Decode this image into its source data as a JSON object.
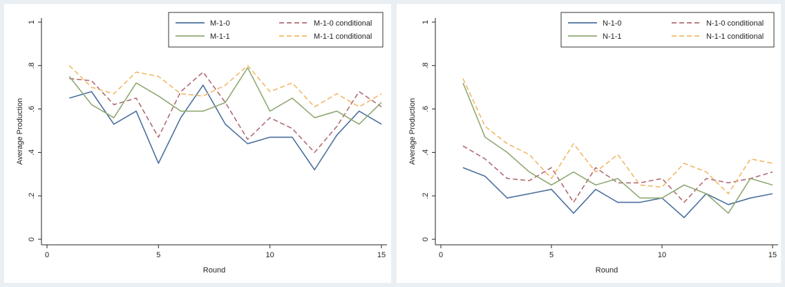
{
  "chart_data": [
    {
      "type": "line",
      "xlabel": "Round",
      "ylabel": "Average Production",
      "xlim": [
        0,
        15
      ],
      "ylim": [
        0,
        1
      ],
      "xticks": [
        {
          "v": 0,
          "label": "0"
        },
        {
          "v": 5,
          "label": "5"
        },
        {
          "v": 10,
          "label": "10"
        },
        {
          "v": 15,
          "label": "15"
        }
      ],
      "yticks": [
        {
          "v": 0,
          "label": "0"
        },
        {
          "v": 0.2,
          "label": ".2"
        },
        {
          "v": 0.4,
          "label": ".4"
        },
        {
          "v": 0.6,
          "label": ".6"
        },
        {
          "v": 0.8,
          "label": ".8"
        },
        {
          "v": 1,
          "label": "1"
        }
      ],
      "grid": false,
      "legend_position": "top-right",
      "x": [
        1,
        2,
        3,
        4,
        5,
        6,
        7,
        8,
        9,
        10,
        11,
        12,
        13,
        14,
        15
      ],
      "series": [
        {
          "name": "M-1-0",
          "color": "#4a6f9e",
          "dash": "solid",
          "values": [
            0.65,
            0.68,
            0.53,
            0.59,
            0.35,
            0.56,
            0.71,
            0.53,
            0.44,
            0.47,
            0.47,
            0.32,
            0.48,
            0.59,
            0.53
          ]
        },
        {
          "name": "M-1-0 conditional",
          "color": "#b06a72",
          "dash": "dashed",
          "values": [
            0.74,
            0.73,
            0.62,
            0.65,
            0.47,
            0.68,
            0.77,
            0.63,
            0.46,
            0.56,
            0.51,
            0.4,
            0.52,
            0.68,
            0.61
          ]
        },
        {
          "name": "M-1-1",
          "color": "#8fa872",
          "dash": "solid",
          "values": [
            0.75,
            0.62,
            0.56,
            0.72,
            0.66,
            0.59,
            0.59,
            0.63,
            0.79,
            0.59,
            0.65,
            0.56,
            0.59,
            0.53,
            0.63
          ]
        },
        {
          "name": "M-1-1 conditional",
          "color": "#f2b766",
          "dash": "dashed",
          "values": [
            0.8,
            0.7,
            0.67,
            0.77,
            0.75,
            0.67,
            0.66,
            0.71,
            0.8,
            0.68,
            0.72,
            0.61,
            0.67,
            0.61,
            0.67
          ]
        }
      ]
    },
    {
      "type": "line",
      "xlabel": "Round",
      "ylabel": "Average Production",
      "xlim": [
        0,
        15
      ],
      "ylim": [
        0,
        1
      ],
      "xticks": [
        {
          "v": 0,
          "label": "0"
        },
        {
          "v": 5,
          "label": "5"
        },
        {
          "v": 10,
          "label": "10"
        },
        {
          "v": 15,
          "label": "15"
        }
      ],
      "yticks": [
        {
          "v": 0,
          "label": "0"
        },
        {
          "v": 0.2,
          "label": ".2"
        },
        {
          "v": 0.4,
          "label": ".4"
        },
        {
          "v": 0.6,
          "label": ".6"
        },
        {
          "v": 0.8,
          "label": ".8"
        },
        {
          "v": 1,
          "label": "1"
        }
      ],
      "grid": false,
      "legend_position": "top-right",
      "x": [
        1,
        2,
        3,
        4,
        5,
        6,
        7,
        8,
        9,
        10,
        11,
        12,
        13,
        14,
        15
      ],
      "series": [
        {
          "name": "N-1-0",
          "color": "#4a6f9e",
          "dash": "solid",
          "values": [
            0.33,
            0.29,
            0.19,
            0.21,
            0.23,
            0.12,
            0.23,
            0.17,
            0.17,
            0.19,
            0.1,
            0.21,
            0.16,
            0.19,
            0.21
          ]
        },
        {
          "name": "N-1-0 conditional",
          "color": "#b06a72",
          "dash": "dashed",
          "values": [
            0.43,
            0.37,
            0.28,
            0.27,
            0.33,
            0.17,
            0.33,
            0.26,
            0.26,
            0.28,
            0.17,
            0.28,
            0.26,
            0.28,
            0.31
          ]
        },
        {
          "name": "N-1-1",
          "color": "#8fa872",
          "dash": "solid",
          "values": [
            0.72,
            0.47,
            0.4,
            0.31,
            0.25,
            0.31,
            0.25,
            0.28,
            0.19,
            0.19,
            0.25,
            0.21,
            0.12,
            0.28,
            0.25
          ]
        },
        {
          "name": "N-1-1 conditional",
          "color": "#f2b766",
          "dash": "dashed",
          "values": [
            0.74,
            0.52,
            0.44,
            0.39,
            0.28,
            0.44,
            0.31,
            0.39,
            0.25,
            0.24,
            0.35,
            0.31,
            0.21,
            0.37,
            0.35
          ]
        }
      ]
    }
  ]
}
